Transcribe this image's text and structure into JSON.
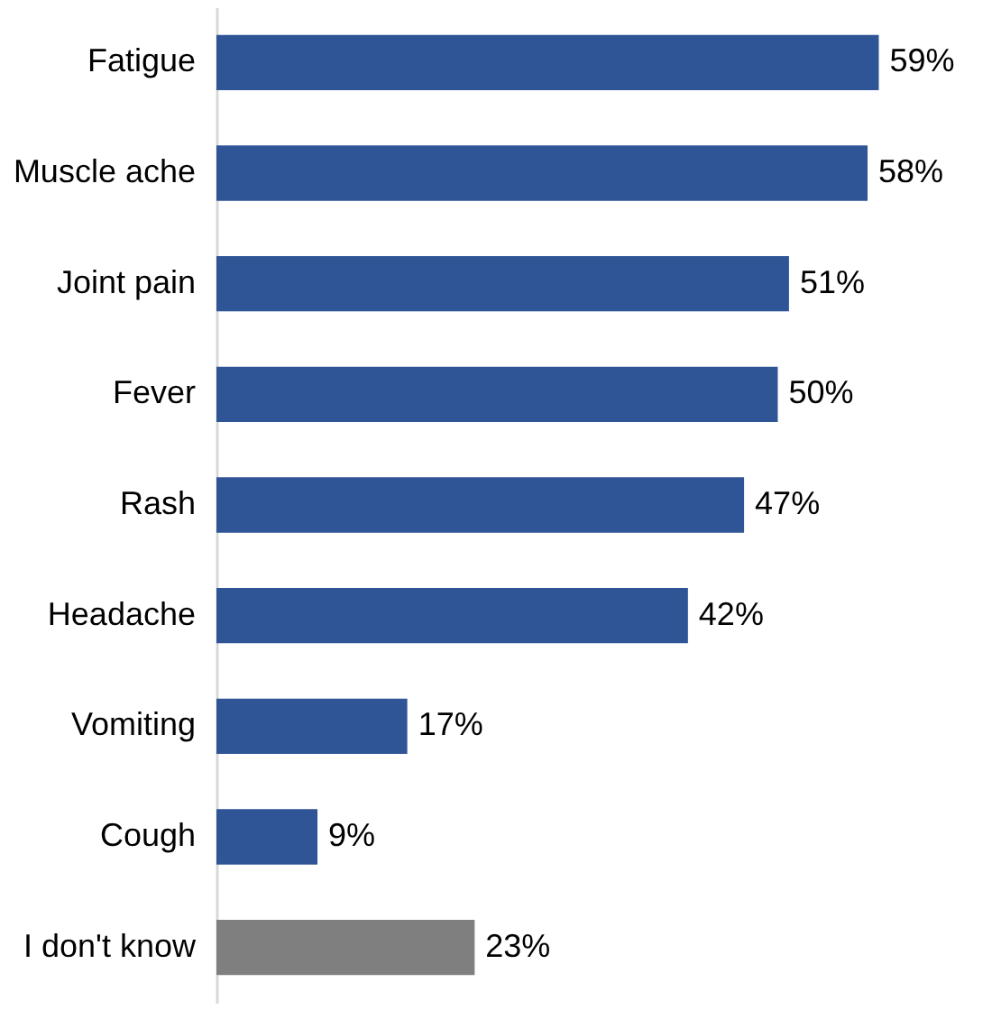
{
  "chart_data": {
    "type": "bar",
    "orientation": "horizontal",
    "categories": [
      "Fatigue",
      "Muscle ache",
      "Joint pain",
      "Fever",
      "Rash",
      "Headache",
      "Vomiting",
      "Cough",
      "I don't know"
    ],
    "values": [
      59,
      58,
      51,
      50,
      47,
      42,
      17,
      9,
      23
    ],
    "value_labels": [
      "59%",
      "58%",
      "51%",
      "50%",
      "47%",
      "42%",
      "17%",
      "9%",
      "23%"
    ],
    "colors": [
      "#2f5597",
      "#2f5597",
      "#2f5597",
      "#2f5597",
      "#2f5597",
      "#2f5597",
      "#2f5597",
      "#2f5597",
      "#7f7f7f"
    ]
  }
}
